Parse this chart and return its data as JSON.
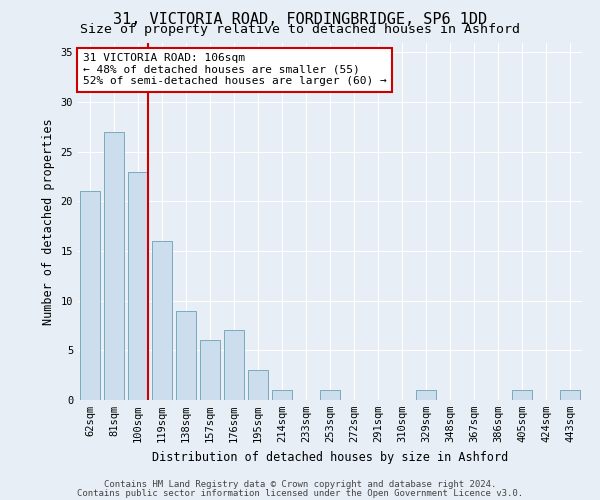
{
  "title1": "31, VICTORIA ROAD, FORDINGBRIDGE, SP6 1DD",
  "title2": "Size of property relative to detached houses in Ashford",
  "xlabel": "Distribution of detached houses by size in Ashford",
  "ylabel": "Number of detached properties",
  "categories": [
    "62sqm",
    "81sqm",
    "100sqm",
    "119sqm",
    "138sqm",
    "157sqm",
    "176sqm",
    "195sqm",
    "214sqm",
    "233sqm",
    "253sqm",
    "272sqm",
    "291sqm",
    "310sqm",
    "329sqm",
    "348sqm",
    "367sqm",
    "386sqm",
    "405sqm",
    "424sqm",
    "443sqm"
  ],
  "values": [
    21,
    27,
    23,
    16,
    9,
    6,
    7,
    3,
    1,
    0,
    1,
    0,
    0,
    0,
    1,
    0,
    0,
    0,
    1,
    0,
    1
  ],
  "bar_color": "#ccdded",
  "bar_edge_color": "#7aaabe",
  "vline_x_index": 2,
  "vline_color": "#cc0000",
  "annotation_text": "31 VICTORIA ROAD: 106sqm\n← 48% of detached houses are smaller (55)\n52% of semi-detached houses are larger (60) →",
  "annotation_box_facecolor": "#ffffff",
  "annotation_box_edgecolor": "#cc0000",
  "ylim": [
    0,
    36
  ],
  "yticks": [
    0,
    5,
    10,
    15,
    20,
    25,
    30,
    35
  ],
  "background_color": "#e8eef5",
  "title1_fontsize": 11,
  "title2_fontsize": 9.5,
  "axis_label_fontsize": 8.5,
  "tick_fontsize": 7.5,
  "annotation_fontsize": 8,
  "footer1": "Contains HM Land Registry data © Crown copyright and database right 2024.",
  "footer2": "Contains public sector information licensed under the Open Government Licence v3.0.",
  "footer_fontsize": 6.5
}
